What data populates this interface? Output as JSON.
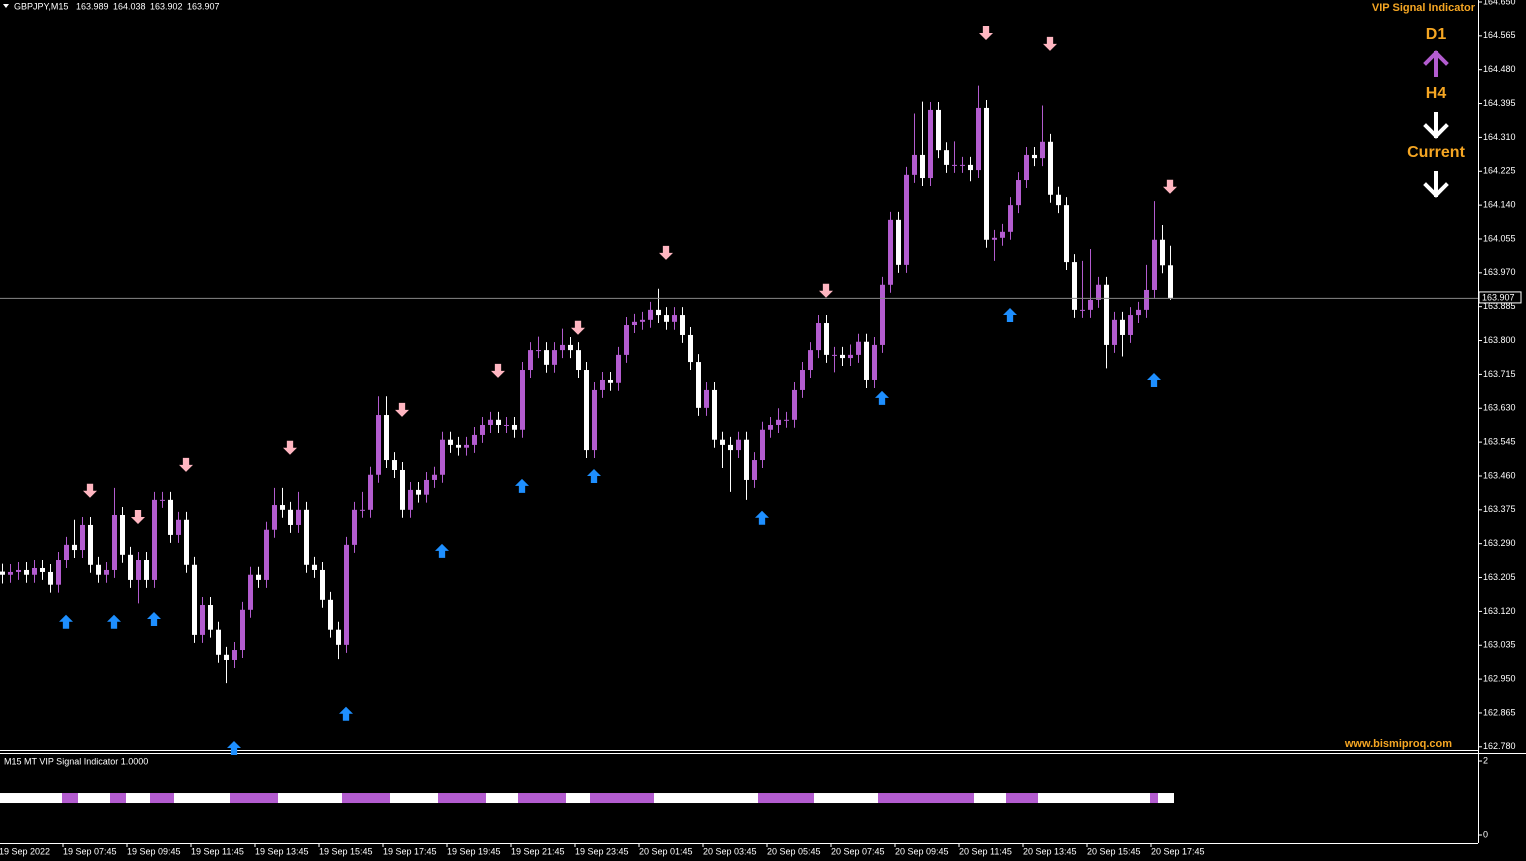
{
  "chart_data": {
    "type": "candlestick",
    "symbol": "GBPJPY,M15",
    "bull_color": "#b35ccf",
    "bear_color": "#ffffff",
    "ylim": [
      162.772,
      164.655
    ],
    "yticks": [
      {
        "value": 164.65,
        "label": "164.650"
      },
      164.565,
      {
        "value": 164.48,
        "label": "164.480"
      },
      164.395,
      {
        "value": 164.31,
        "label": "164.310"
      },
      164.225,
      {
        "value": 164.14,
        "label": "164.140"
      },
      164.055,
      {
        "value": 163.97,
        "label": "163.970"
      },
      163.885,
      {
        "value": 163.8,
        "label": "163.800"
      },
      163.715,
      {
        "value": 163.63,
        "label": "163.630"
      },
      163.545,
      {
        "value": 163.46,
        "label": "163.460"
      },
      163.375,
      {
        "value": 163.29,
        "label": "163.290"
      },
      163.205,
      {
        "value": 163.12,
        "label": "163.120"
      },
      163.035,
      {
        "value": 162.95,
        "label": "162.950"
      },
      162.865,
      {
        "value": 162.78,
        "label": "162.780"
      }
    ],
    "xticks": [
      {
        "value": 0,
        "label": "19 Sep 2022"
      },
      {
        "value": 8,
        "label": "19 Sep 07:45"
      },
      {
        "value": 16,
        "label": "19 Sep 09:45"
      },
      {
        "value": 24,
        "label": "19 Sep 11:45"
      },
      {
        "value": 32,
        "label": "19 Sep 13:45"
      },
      {
        "value": 40,
        "label": "19 Sep 15:45"
      },
      {
        "value": 48,
        "label": "19 Sep 17:45"
      },
      {
        "value": 56,
        "label": "19 Sep 19:45"
      },
      {
        "value": 64,
        "label": "19 Sep 21:45"
      },
      {
        "value": 72,
        "label": "19 Sep 23:45"
      },
      {
        "value": 80,
        "label": "20 Sep 01:45"
      },
      {
        "value": 88,
        "label": "20 Sep 03:45"
      },
      {
        "value": 96,
        "label": "20 Sep 05:45"
      },
      {
        "value": 104,
        "label": "20 Sep 07:45"
      },
      {
        "value": 112,
        "label": "20 Sep 09:45"
      },
      {
        "value": 120,
        "label": "20 Sep 11:45"
      },
      {
        "value": 128,
        "label": "20 Sep 13:45"
      },
      {
        "value": 136,
        "label": "20 Sep 15:45"
      },
      {
        "value": 144,
        "label": "20 Sep 17:45"
      }
    ],
    "candles": [
      [
        163.22,
        163.24,
        163.19,
        163.212
      ],
      [
        163.212,
        163.239,
        163.192,
        163.219
      ],
      [
        163.219,
        163.244,
        163.199,
        163.224
      ],
      [
        163.224,
        163.244,
        163.192,
        163.212
      ],
      [
        163.212,
        163.249,
        163.192,
        163.229
      ],
      [
        163.229,
        163.249,
        163.199,
        163.219
      ],
      [
        163.219,
        163.239,
        163.167,
        163.187
      ],
      [
        163.187,
        163.269,
        163.167,
        163.249
      ],
      [
        163.249,
        163.307,
        163.229,
        163.287
      ],
      [
        163.287,
        163.35,
        163.254,
        163.274
      ],
      [
        163.274,
        163.357,
        163.254,
        163.337
      ],
      [
        163.337,
        163.357,
        163.217,
        163.237
      ],
      [
        163.237,
        163.257,
        163.192,
        163.212
      ],
      [
        163.212,
        163.244,
        163.192,
        163.224
      ],
      [
        163.224,
        163.43,
        163.204,
        163.362
      ],
      [
        163.362,
        163.382,
        163.242,
        163.262
      ],
      [
        163.262,
        163.282,
        163.179,
        163.199
      ],
      [
        163.199,
        163.269,
        163.14,
        163.249
      ],
      [
        163.249,
        163.269,
        163.179,
        163.199
      ],
      [
        163.199,
        163.42,
        163.179,
        163.4
      ],
      [
        163.4,
        163.42,
        163.38,
        163.4
      ],
      [
        163.4,
        163.42,
        163.292,
        163.312
      ],
      [
        163.312,
        163.37,
        163.292,
        163.35
      ],
      [
        163.35,
        163.37,
        163.217,
        163.237
      ],
      [
        163.237,
        163.257,
        163.041,
        163.061
      ],
      [
        163.061,
        163.156,
        163.041,
        163.136
      ],
      [
        163.136,
        163.156,
        163.054,
        163.074
      ],
      [
        163.074,
        163.094,
        162.991,
        163.011
      ],
      [
        163.011,
        163.031,
        162.94,
        162.998
      ],
      [
        162.998,
        163.043,
        162.978,
        163.023
      ],
      [
        163.023,
        163.144,
        163.003,
        163.124
      ],
      [
        163.124,
        163.232,
        163.104,
        163.212
      ],
      [
        163.212,
        163.232,
        163.179,
        163.199
      ],
      [
        163.199,
        163.345,
        163.179,
        163.325
      ],
      [
        163.325,
        163.43,
        163.305,
        163.387
      ],
      [
        163.387,
        163.43,
        163.355,
        163.375
      ],
      [
        163.375,
        163.395,
        163.317,
        163.337
      ],
      [
        163.337,
        163.42,
        163.317,
        163.375
      ],
      [
        163.375,
        163.395,
        163.217,
        163.237
      ],
      [
        163.237,
        163.257,
        163.204,
        163.224
      ],
      [
        163.224,
        163.244,
        163.129,
        163.149
      ],
      [
        163.149,
        163.169,
        163.054,
        163.074
      ],
      [
        163.074,
        163.094,
        163.0,
        163.036
      ],
      [
        163.036,
        163.307,
        163.016,
        163.287
      ],
      [
        163.287,
        163.395,
        163.267,
        163.375
      ],
      [
        163.375,
        163.42,
        163.355,
        163.375
      ],
      [
        163.375,
        163.483,
        163.355,
        163.463
      ],
      [
        163.463,
        163.66,
        163.443,
        163.613
      ],
      [
        163.613,
        163.66,
        163.48,
        163.5
      ],
      [
        163.5,
        163.52,
        163.455,
        163.475
      ],
      [
        163.475,
        163.495,
        163.355,
        163.375
      ],
      [
        163.375,
        163.445,
        163.355,
        163.425
      ],
      [
        163.425,
        163.445,
        163.393,
        163.413
      ],
      [
        163.413,
        163.47,
        163.393,
        163.45
      ],
      [
        163.45,
        163.483,
        163.43,
        163.463
      ],
      [
        163.463,
        163.571,
        163.443,
        163.551
      ],
      [
        163.551,
        163.571,
        163.518,
        163.538
      ],
      [
        163.538,
        163.558,
        163.511,
        163.531
      ],
      [
        163.531,
        163.558,
        163.511,
        163.538
      ],
      [
        163.538,
        163.583,
        163.518,
        163.563
      ],
      [
        163.563,
        163.608,
        163.543,
        163.588
      ],
      [
        163.588,
        163.621,
        163.568,
        163.601
      ],
      [
        163.601,
        163.621,
        163.568,
        163.588
      ],
      [
        163.588,
        163.608,
        163.568,
        163.588
      ],
      [
        163.588,
        163.608,
        163.556,
        163.576
      ],
      [
        163.576,
        163.746,
        163.556,
        163.726
      ],
      [
        163.726,
        163.796,
        163.706,
        163.776
      ],
      [
        163.776,
        163.81,
        163.756,
        163.776
      ],
      [
        163.776,
        163.796,
        163.719,
        163.739
      ],
      [
        163.739,
        163.796,
        163.719,
        163.776
      ],
      [
        163.776,
        163.83,
        163.756,
        163.789
      ],
      [
        163.789,
        163.809,
        163.756,
        163.776
      ],
      [
        163.776,
        163.796,
        163.706,
        163.726
      ],
      [
        163.726,
        163.746,
        163.505,
        163.525
      ],
      [
        163.525,
        163.696,
        163.505,
        163.676
      ],
      [
        163.676,
        163.721,
        163.656,
        163.701
      ],
      [
        163.701,
        163.721,
        163.674,
        163.694
      ],
      [
        163.694,
        163.784,
        163.674,
        163.764
      ],
      [
        163.764,
        163.859,
        163.744,
        163.839
      ],
      [
        163.839,
        163.867,
        163.819,
        163.847
      ],
      [
        163.847,
        163.872,
        163.827,
        163.852
      ],
      [
        163.852,
        163.897,
        163.832,
        163.877
      ],
      [
        163.877,
        163.93,
        163.844,
        163.864
      ],
      [
        163.864,
        163.884,
        163.827,
        163.847
      ],
      [
        163.847,
        163.884,
        163.827,
        163.864
      ],
      [
        163.864,
        163.884,
        163.794,
        163.814
      ],
      [
        163.814,
        163.834,
        163.726,
        163.746
      ],
      [
        163.746,
        163.766,
        163.611,
        163.631
      ],
      [
        163.631,
        163.696,
        163.611,
        163.676
      ],
      [
        163.676,
        163.696,
        163.531,
        163.551
      ],
      [
        163.551,
        163.571,
        163.48,
        163.538
      ],
      [
        163.538,
        163.558,
        163.42,
        163.525
      ],
      [
        163.525,
        163.571,
        163.505,
        163.551
      ],
      [
        163.551,
        163.571,
        163.4,
        163.45
      ],
      [
        163.45,
        163.52,
        163.43,
        163.5
      ],
      [
        163.5,
        163.596,
        163.48,
        163.576
      ],
      [
        163.576,
        163.608,
        163.556,
        163.588
      ],
      [
        163.588,
        163.63,
        163.568,
        163.601
      ],
      [
        163.601,
        163.621,
        163.581,
        163.601
      ],
      [
        163.601,
        163.696,
        163.581,
        163.676
      ],
      [
        163.676,
        163.746,
        163.656,
        163.726
      ],
      [
        163.726,
        163.796,
        163.706,
        163.776
      ],
      [
        163.776,
        163.864,
        163.756,
        163.844
      ],
      [
        163.844,
        163.864,
        163.744,
        163.764
      ],
      [
        163.764,
        163.784,
        163.72,
        163.764
      ],
      [
        163.764,
        163.784,
        163.736,
        163.756
      ],
      [
        163.756,
        163.79,
        163.736,
        163.764
      ],
      [
        163.764,
        163.817,
        163.744,
        163.797
      ],
      [
        163.797,
        163.817,
        163.681,
        163.701
      ],
      [
        163.701,
        163.809,
        163.681,
        163.789
      ],
      [
        163.789,
        163.96,
        163.769,
        163.94
      ],
      [
        163.94,
        164.123,
        163.92,
        164.103
      ],
      [
        164.103,
        164.123,
        163.97,
        163.99
      ],
      [
        163.99,
        164.236,
        163.97,
        164.216
      ],
      [
        164.216,
        164.37,
        164.196,
        164.266
      ],
      [
        164.266,
        164.4,
        164.188,
        164.208
      ],
      [
        164.208,
        164.399,
        164.188,
        164.379
      ],
      [
        164.379,
        164.399,
        164.258,
        164.278
      ],
      [
        164.278,
        164.298,
        164.221,
        164.241
      ],
      [
        164.241,
        164.3,
        164.221,
        164.241
      ],
      [
        164.241,
        164.261,
        164.221,
        164.241
      ],
      [
        164.241,
        164.261,
        164.2,
        164.228
      ],
      [
        164.228,
        164.44,
        164.208,
        164.384
      ],
      [
        164.384,
        164.404,
        164.033,
        164.053
      ],
      [
        164.053,
        164.078,
        164.0,
        164.058
      ],
      [
        164.058,
        164.093,
        164.038,
        164.073
      ],
      [
        164.073,
        164.16,
        164.053,
        164.14
      ],
      [
        164.14,
        164.223,
        164.12,
        164.203
      ],
      [
        164.203,
        164.286,
        164.183,
        164.266
      ],
      [
        164.266,
        164.286,
        164.238,
        164.258
      ],
      [
        164.258,
        164.39,
        164.238,
        164.299
      ],
      [
        164.299,
        164.319,
        164.146,
        164.166
      ],
      [
        164.166,
        164.186,
        164.12,
        164.14
      ],
      [
        164.14,
        164.16,
        163.977,
        163.997
      ],
      [
        163.997,
        164.017,
        163.857,
        163.877
      ],
      [
        163.877,
        164.0,
        163.857,
        163.877
      ],
      [
        163.877,
        164.03,
        163.857,
        163.902
      ],
      [
        163.902,
        163.96,
        163.882,
        163.94
      ],
      [
        163.94,
        163.96,
        163.73,
        163.789
      ],
      [
        163.789,
        163.872,
        163.769,
        163.852
      ],
      [
        163.852,
        163.872,
        163.76,
        163.814
      ],
      [
        163.814,
        163.884,
        163.794,
        163.864
      ],
      [
        163.864,
        163.897,
        163.844,
        163.877
      ],
      [
        163.877,
        163.99,
        163.857,
        163.927
      ],
      [
        163.927,
        164.15,
        163.907,
        164.053
      ],
      [
        164.053,
        164.09,
        163.969,
        163.989
      ],
      [
        163.989,
        164.038,
        163.902,
        163.907
      ]
    ],
    "signals": {
      "up_color": "#1e8fff",
      "down_color": "#ffb6c1",
      "up": [
        {
          "index": 8,
          "price": 163.094
        },
        {
          "index": 14,
          "price": 163.094
        },
        {
          "index": 19,
          "price": 163.101
        },
        {
          "index": 29,
          "price": 162.777
        },
        {
          "index": 43,
          "price": 162.863
        },
        {
          "index": 55,
          "price": 163.272
        },
        {
          "index": 65,
          "price": 163.435
        },
        {
          "index": 74,
          "price": 163.46
        },
        {
          "index": 95,
          "price": 163.355
        },
        {
          "index": 110,
          "price": 163.656
        },
        {
          "index": 126,
          "price": 163.864
        },
        {
          "index": 144,
          "price": 163.701
        }
      ],
      "down": [
        {
          "index": 11,
          "price": 163.423
        },
        {
          "index": 17,
          "price": 163.357
        },
        {
          "index": 23,
          "price": 163.488
        },
        {
          "index": 36,
          "price": 163.531
        },
        {
          "index": 50,
          "price": 163.626
        },
        {
          "index": 62,
          "price": 163.724
        },
        {
          "index": 72,
          "price": 163.832
        },
        {
          "index": 83,
          "price": 164.02
        },
        {
          "index": 103,
          "price": 163.925
        },
        {
          "index": 123,
          "price": 164.572
        },
        {
          "index": 131,
          "price": 164.545
        },
        {
          "index": 146,
          "price": 164.186
        }
      ]
    },
    "panel": {
      "title": "VIP Signal Indicator",
      "timeframes": [
        {
          "label": "D1",
          "direction": "up",
          "color": "#b35ccf"
        },
        {
          "label": "H4",
          "direction": "down",
          "color": "#ffffff"
        },
        {
          "label": "Current",
          "direction": "down",
          "color": "#ffffff"
        }
      ]
    },
    "watermark": "www.bismiproq.com",
    "indicator": {
      "title": "M15 MT VIP Signal Indicator 1.0000",
      "ylim": [
        -0.216,
        2.19
      ],
      "yticks": [
        0,
        2
      ],
      "level": 1,
      "segments": [
        {
          "from": 0,
          "to": 8,
          "color": "#ffffff"
        },
        {
          "from": 8,
          "to": 10,
          "color": "#b35ccf"
        },
        {
          "from": 10,
          "to": 14,
          "color": "#ffffff"
        },
        {
          "from": 14,
          "to": 16,
          "color": "#b35ccf"
        },
        {
          "from": 16,
          "to": 19,
          "color": "#ffffff"
        },
        {
          "from": 19,
          "to": 22,
          "color": "#b35ccf"
        },
        {
          "from": 22,
          "to": 29,
          "color": "#ffffff"
        },
        {
          "from": 29,
          "to": 35,
          "color": "#b35ccf"
        },
        {
          "from": 35,
          "to": 43,
          "color": "#ffffff"
        },
        {
          "from": 43,
          "to": 49,
          "color": "#b35ccf"
        },
        {
          "from": 49,
          "to": 55,
          "color": "#ffffff"
        },
        {
          "from": 55,
          "to": 61,
          "color": "#b35ccf"
        },
        {
          "from": 61,
          "to": 65,
          "color": "#ffffff"
        },
        {
          "from": 65,
          "to": 71,
          "color": "#b35ccf"
        },
        {
          "from": 71,
          "to": 74,
          "color": "#ffffff"
        },
        {
          "from": 74,
          "to": 82,
          "color": "#b35ccf"
        },
        {
          "from": 82,
          "to": 95,
          "color": "#ffffff"
        },
        {
          "from": 95,
          "to": 102,
          "color": "#b35ccf"
        },
        {
          "from": 102,
          "to": 110,
          "color": "#ffffff"
        },
        {
          "from": 110,
          "to": 122,
          "color": "#b35ccf"
        },
        {
          "from": 122,
          "to": 126,
          "color": "#ffffff"
        },
        {
          "from": 126,
          "to": 130,
          "color": "#b35ccf"
        },
        {
          "from": 130,
          "to": 144,
          "color": "#ffffff"
        },
        {
          "from": 144,
          "to": 145,
          "color": "#b35ccf"
        },
        {
          "from": 145,
          "to": 147,
          "color": "#ffffff"
        }
      ]
    }
  }
}
